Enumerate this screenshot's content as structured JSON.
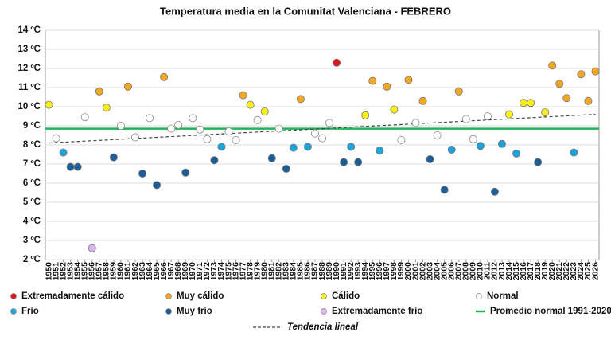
{
  "chart_data": {
    "type": "scatter",
    "title": "Temperatura media en la Comunitat Valenciana - FEBRERO",
    "xlim": [
      1949.5,
      2026.5
    ],
    "xticks": [
      1950,
      1951,
      1952,
      1953,
      1954,
      1955,
      1956,
      1957,
      1958,
      1959,
      1960,
      1961,
      1962,
      1963,
      1964,
      1965,
      1966,
      1967,
      1968,
      1969,
      1970,
      1971,
      1972,
      1973,
      1974,
      1975,
      1976,
      1977,
      1978,
      1979,
      1980,
      1981,
      1982,
      1983,
      1984,
      1985,
      1986,
      1987,
      1988,
      1989,
      1990,
      1991,
      1992,
      1993,
      1994,
      1995,
      1996,
      1997,
      1998,
      1999,
      2000,
      2001,
      2002,
      2003,
      2004,
      2005,
      2006,
      2007,
      2008,
      2009,
      2010,
      2011,
      2012,
      2013,
      2014,
      2015,
      2016,
      2017,
      2018,
      2019,
      2020,
      2021,
      2022,
      2023,
      2024,
      2025,
      2026
    ],
    "ylim": [
      2,
      14
    ],
    "yticks": [
      {
        "value": 2,
        "label": "2 ºC"
      },
      {
        "value": 3,
        "label": "3 ºC"
      },
      {
        "value": 4,
        "label": "4 ºC"
      },
      {
        "value": 5,
        "label": "5 ºC"
      },
      {
        "value": 6,
        "label": "6 ºC"
      },
      {
        "value": 7,
        "label": "7 ºC"
      },
      {
        "value": 8,
        "label": "8 ºC"
      },
      {
        "value": 9,
        "label": "9 ºC"
      },
      {
        "value": 10,
        "label": "10 ºC"
      },
      {
        "value": 11,
        "label": "11 ºC"
      },
      {
        "value": 12,
        "label": "12 ºC"
      },
      {
        "value": 13,
        "label": "13 ºC"
      },
      {
        "value": 14,
        "label": "14 ºC"
      }
    ],
    "grid": true,
    "series": [
      {
        "name": "Extremadamente cálido",
        "color": "#e3151b",
        "x": [
          1990
        ],
        "values": [
          12.3
        ]
      },
      {
        "name": "Muy cálido",
        "color": "#f5a623",
        "x": [
          1957,
          1961,
          1966,
          1977,
          1985,
          1995,
          1997,
          2000,
          2002,
          2007,
          2020,
          2021,
          2022,
          2024,
          2025,
          2026
        ],
        "values": [
          10.8,
          11.05,
          11.55,
          10.6,
          10.4,
          11.35,
          11.05,
          11.4,
          10.3,
          10.8,
          12.15,
          11.2,
          10.45,
          11.7,
          10.3,
          11.85
        ]
      },
      {
        "name": "Cálido",
        "color": "#f8ee1c",
        "x": [
          1950,
          1958,
          1978,
          1980,
          1994,
          1998,
          2014,
          2016,
          2017,
          2019
        ],
        "values": [
          10.1,
          9.95,
          10.1,
          9.75,
          9.55,
          9.85,
          9.6,
          10.2,
          10.2,
          9.7
        ]
      },
      {
        "name": "Normal",
        "color": "#ffffff",
        "x": [
          1951,
          1955,
          1960,
          1962,
          1964,
          1967,
          1968,
          1970,
          1971,
          1972,
          1975,
          1976,
          1979,
          1982,
          1987,
          1988,
          1989,
          1999,
          2001,
          2004,
          2008,
          2009,
          2011
        ],
        "values": [
          8.35,
          9.45,
          9.0,
          8.4,
          9.4,
          8.85,
          9.05,
          9.4,
          8.8,
          8.3,
          8.7,
          8.25,
          9.3,
          8.85,
          8.6,
          8.35,
          9.15,
          8.25,
          9.15,
          8.5,
          9.35,
          8.3,
          9.5
        ]
      },
      {
        "name": "Frío",
        "color": "#1ea2dc",
        "x": [
          1952,
          1974,
          1984,
          1986,
          1992,
          1996,
          2006,
          2010,
          2013,
          2015,
          2023
        ],
        "values": [
          7.6,
          7.9,
          7.85,
          7.9,
          7.9,
          7.7,
          7.75,
          7.95,
          8.05,
          7.55,
          7.6
        ]
      },
      {
        "name": "Muy frío",
        "color": "#1c5d98",
        "x": [
          1953,
          1954,
          1959,
          1963,
          1965,
          1969,
          1973,
          1981,
          1983,
          1991,
          1993,
          2003,
          2005,
          2012,
          2018
        ],
        "values": [
          6.85,
          6.85,
          7.35,
          6.5,
          5.9,
          6.55,
          7.2,
          7.3,
          6.75,
          7.1,
          7.1,
          7.25,
          5.65,
          5.55,
          7.1
        ]
      },
      {
        "name": "Extremadamente frío",
        "color": "#dcb2f0",
        "x": [
          1956
        ],
        "values": [
          2.6
        ]
      }
    ],
    "lines": [
      {
        "name": "Promedio normal 1991-2020",
        "color": "#22b35a",
        "style": "solid",
        "x": [
          1949.5,
          2026.5
        ],
        "values": [
          8.85,
          8.85
        ]
      },
      {
        "name": "Tendencia lineal",
        "color": "#444444",
        "style": "dashed",
        "x": [
          1950,
          2026
        ],
        "values": [
          8.1,
          9.6
        ]
      }
    ]
  }
}
